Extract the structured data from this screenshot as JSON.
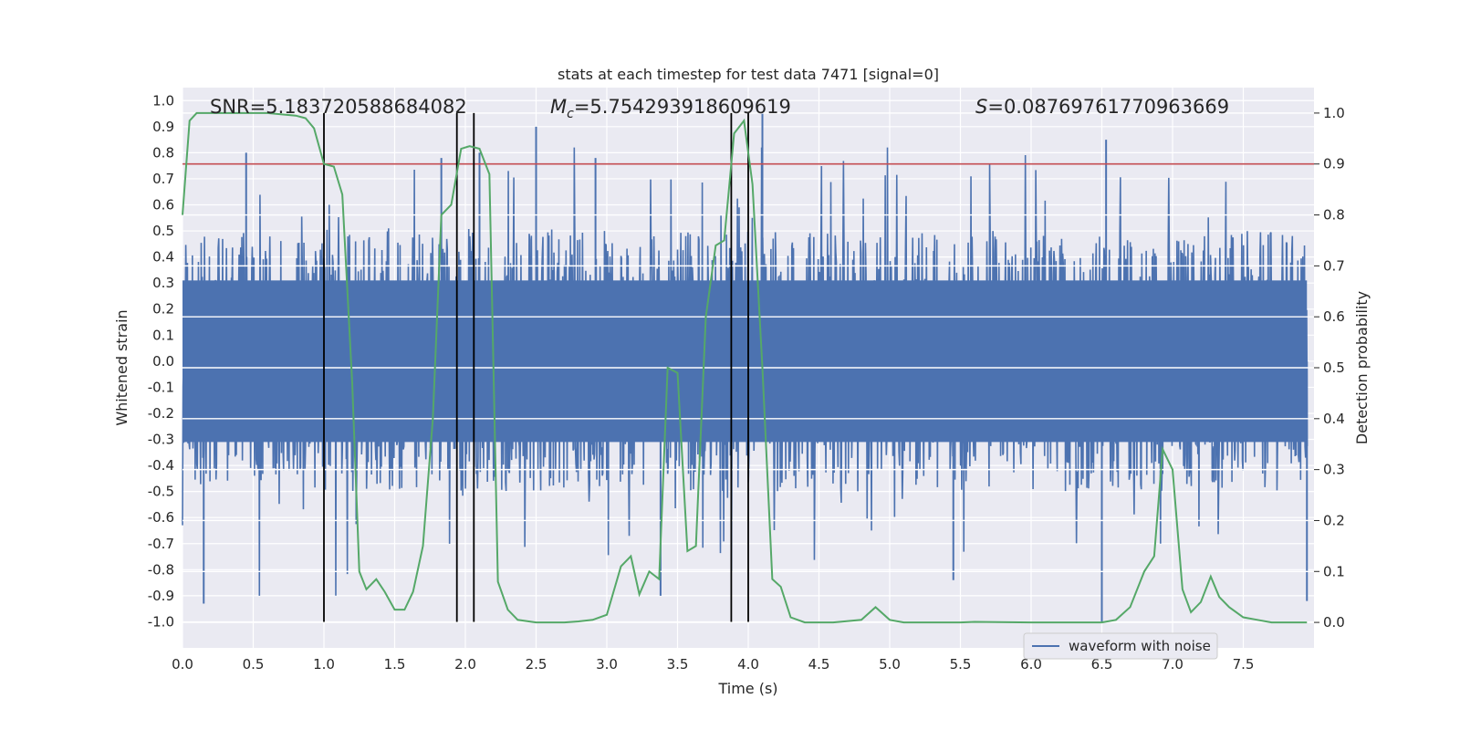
{
  "chart_data": {
    "type": "line",
    "title": "stats at each timestep for test data 7471 [signal=0]",
    "xlabel": "Time (s)",
    "ylabel": "Whitened strain",
    "y2label": "Detection probability",
    "xlim": [
      0.0,
      8.0
    ],
    "ylim": [
      -1.1,
      1.05
    ],
    "y2lim": [
      -0.05,
      1.05
    ],
    "x_ticks": [
      "0.0",
      "0.5",
      "1.0",
      "1.5",
      "2.0",
      "2.5",
      "3.0",
      "3.5",
      "4.0",
      "4.5",
      "5.0",
      "5.5",
      "6.0",
      "6.5",
      "7.0",
      "7.5"
    ],
    "y_ticks": [
      "1.0",
      "0.9",
      "0.8",
      "0.7",
      "0.6",
      "0.5",
      "0.4",
      "0.3",
      "0.2",
      "0.1",
      "0.0",
      "-0.1",
      "-0.2",
      "-0.3",
      "-0.4",
      "-0.5",
      "-0.6",
      "-0.7",
      "-0.8",
      "-0.9",
      "-1.0"
    ],
    "y2_ticks": [
      "1.0",
      "0.9",
      "0.8",
      "0.7",
      "0.6",
      "0.5",
      "0.4",
      "0.3",
      "0.2",
      "0.1",
      "0.0"
    ],
    "grid": true,
    "background": "#eaeaf2",
    "annotations": {
      "snr": "SNR=5.183720588684082",
      "mc_symbol": "M",
      "mc_sub": "c",
      "mc_value": "=5.754293918609619",
      "s_symbol": "S",
      "s_value": "=0.08769761770963669"
    },
    "legend": {
      "label": "waveform with noise",
      "placement": "lower-right"
    },
    "series": [
      {
        "name": "waveform with noise",
        "axis": "left",
        "color": "#4c72b0",
        "style": "dense noise",
        "samples": 2048,
        "envelope_upper": 0.5,
        "envelope_lower": -0.5,
        "spikes": [
          {
            "x": 0.15,
            "y": -0.93
          },
          {
            "x": 0.45,
            "y": 0.8
          },
          {
            "x": 2.5,
            "y": 0.9
          },
          {
            "x": 4.1,
            "y": 0.95
          },
          {
            "x": 6.5,
            "y": -1.0
          },
          {
            "x": 6.53,
            "y": 0.85
          },
          {
            "x": 5.45,
            "y": -0.84
          },
          {
            "x": 7.95,
            "y": -0.92
          },
          {
            "x": 2.1,
            "y": 0.8
          },
          {
            "x": 3.38,
            "y": -0.9
          },
          {
            "x": 1.83,
            "y": 0.78
          },
          {
            "x": 2.92,
            "y": 0.78
          }
        ]
      },
      {
        "name": "",
        "axis": "right",
        "color": "#55a868",
        "x": [
          0.0,
          0.05,
          0.1,
          0.2,
          0.4,
          0.6,
          0.8,
          0.87,
          0.93,
          1.0,
          1.07,
          1.13,
          1.2,
          1.25,
          1.3,
          1.37,
          1.43,
          1.5,
          1.57,
          1.63,
          1.7,
          1.77,
          1.83,
          1.9,
          1.97,
          2.03,
          2.1,
          2.17,
          2.23,
          2.3,
          2.37,
          2.5,
          2.7,
          2.8,
          2.9,
          3.0,
          3.1,
          3.17,
          3.23,
          3.3,
          3.37,
          3.43,
          3.5,
          3.57,
          3.63,
          3.7,
          3.77,
          3.83,
          3.9,
          3.97,
          4.03,
          4.1,
          4.17,
          4.23,
          4.3,
          4.4,
          4.6,
          4.8,
          4.9,
          5.0,
          5.1,
          5.3,
          5.5,
          5.6,
          6.0,
          6.5,
          6.6,
          6.7,
          6.8,
          6.87,
          6.93,
          7.0,
          7.07,
          7.13,
          7.2,
          7.27,
          7.33,
          7.4,
          7.5,
          7.6,
          7.7,
          7.8,
          7.95
        ],
        "y": [
          0.8,
          0.985,
          1.0,
          1.0,
          1.0,
          1.0,
          0.995,
          0.99,
          0.97,
          0.9,
          0.895,
          0.84,
          0.47,
          0.1,
          0.065,
          0.085,
          0.06,
          0.025,
          0.025,
          0.06,
          0.15,
          0.4,
          0.8,
          0.82,
          0.93,
          0.935,
          0.93,
          0.88,
          0.08,
          0.025,
          0.005,
          0.0,
          0.0,
          0.002,
          0.005,
          0.015,
          0.11,
          0.13,
          0.055,
          0.1,
          0.085,
          0.5,
          0.49,
          0.14,
          0.15,
          0.6,
          0.74,
          0.75,
          0.96,
          0.985,
          0.86,
          0.5,
          0.085,
          0.07,
          0.01,
          0.0,
          0.0,
          0.005,
          0.03,
          0.005,
          0.0,
          0.0,
          0.0,
          0.001,
          0.0,
          0.0,
          0.005,
          0.03,
          0.1,
          0.13,
          0.34,
          0.3,
          0.065,
          0.02,
          0.04,
          0.09,
          0.05,
          0.03,
          0.01,
          0.005,
          0.0,
          0.0,
          0.0
        ]
      }
    ],
    "threshold_line": {
      "y2": 0.9,
      "color": "#c44e52"
    },
    "vertical_lines": {
      "x": [
        1.0,
        1.94,
        2.06,
        3.88,
        4.0
      ],
      "color": "#000000",
      "y_from": -1.0,
      "y2_to": 1.0
    }
  }
}
